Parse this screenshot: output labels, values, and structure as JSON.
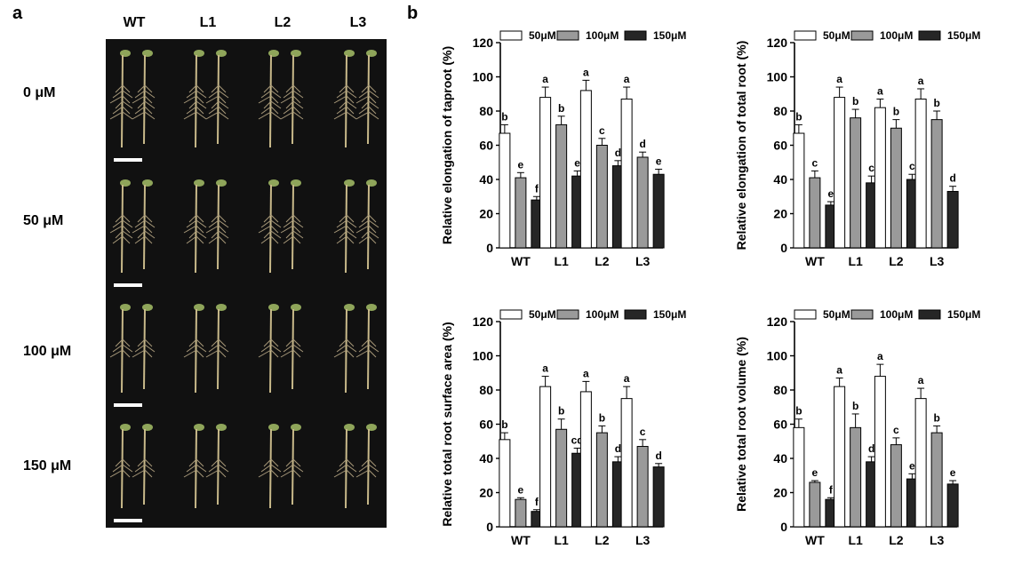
{
  "panel_labels": {
    "a": "a",
    "b": "b"
  },
  "photo": {
    "columns": [
      "WT",
      "L1",
      "L2",
      "L3"
    ],
    "rows": [
      "0 μM",
      "50 μM",
      "100 μM",
      "150 μM"
    ],
    "background": "#111111",
    "seedling_color": "#c8b98a",
    "leaf_color": "#8fa55a"
  },
  "chart_style": {
    "series_fill": [
      "#ffffff",
      "#9a9a9a",
      "#262626"
    ],
    "stroke": "#000000"
  },
  "chart_data": [
    {
      "type": "bar",
      "ylabel": "Relative elongation of taproot (%)",
      "categories": [
        "WT",
        "L1",
        "L2",
        "L3"
      ],
      "ylim": [
        0,
        120
      ],
      "yticks": [
        0,
        20,
        40,
        60,
        80,
        100,
        120
      ],
      "legend": "top",
      "series": [
        {
          "name": "50μM",
          "values": [
            67,
            88,
            92,
            87
          ],
          "errors": [
            5,
            6,
            6,
            7
          ],
          "letters": [
            "b",
            "a",
            "a",
            "a"
          ]
        },
        {
          "name": "100μM",
          "values": [
            41,
            72,
            60,
            53
          ],
          "errors": [
            3,
            5,
            4,
            3
          ],
          "letters": [
            "e",
            "b",
            "c",
            "d"
          ]
        },
        {
          "name": "150μM",
          "values": [
            28,
            42,
            48,
            43
          ],
          "errors": [
            2,
            3,
            3,
            3
          ],
          "letters": [
            "f",
            "e",
            "d",
            "e"
          ]
        }
      ]
    },
    {
      "type": "bar",
      "ylabel": "Relative elongation of total root (%)",
      "categories": [
        "WT",
        "L1",
        "L2",
        "L3"
      ],
      "ylim": [
        0,
        120
      ],
      "yticks": [
        0,
        20,
        40,
        60,
        80,
        100,
        120
      ],
      "legend": "top",
      "series": [
        {
          "name": "50μM",
          "values": [
            67,
            88,
            82,
            87
          ],
          "errors": [
            5,
            6,
            5,
            6
          ],
          "letters": [
            "b",
            "a",
            "a",
            "a"
          ]
        },
        {
          "name": "100μM",
          "values": [
            41,
            76,
            70,
            75
          ],
          "errors": [
            4,
            5,
            5,
            5
          ],
          "letters": [
            "c",
            "b",
            "b",
            "b"
          ]
        },
        {
          "name": "150μM",
          "values": [
            25,
            38,
            40,
            33
          ],
          "errors": [
            2,
            4,
            3,
            3
          ],
          "letters": [
            "e",
            "c",
            "c",
            "d"
          ]
        }
      ]
    },
    {
      "type": "bar",
      "ylabel": "Relative total root surface area (%)",
      "categories": [
        "WT",
        "L1",
        "L2",
        "L3"
      ],
      "ylim": [
        0,
        120
      ],
      "yticks": [
        0,
        20,
        40,
        60,
        80,
        100,
        120
      ],
      "legend": "top",
      "series": [
        {
          "name": "50μM",
          "values": [
            51,
            82,
            79,
            75
          ],
          "errors": [
            4,
            6,
            6,
            7
          ],
          "letters": [
            "b",
            "a",
            "a",
            "a"
          ]
        },
        {
          "name": "100μM",
          "values": [
            16,
            57,
            55,
            47
          ],
          "errors": [
            1,
            6,
            4,
            4
          ],
          "letters": [
            "e",
            "b",
            "b",
            "c"
          ]
        },
        {
          "name": "150μM",
          "values": [
            9,
            43,
            38,
            35
          ],
          "errors": [
            1,
            3,
            3,
            2
          ],
          "letters": [
            "f",
            "cd",
            "d",
            "d"
          ]
        }
      ]
    },
    {
      "type": "bar",
      "ylabel": "Relative total root volume (%)",
      "categories": [
        "WT",
        "L1",
        "L2",
        "L3"
      ],
      "ylim": [
        0,
        120
      ],
      "yticks": [
        0,
        20,
        40,
        60,
        80,
        100,
        120
      ],
      "legend": "top",
      "series": [
        {
          "name": "50μM",
          "values": [
            58,
            82,
            88,
            75
          ],
          "errors": [
            5,
            5,
            7,
            6
          ],
          "letters": [
            "b",
            "a",
            "a",
            "a"
          ]
        },
        {
          "name": "100μM",
          "values": [
            26,
            58,
            48,
            55
          ],
          "errors": [
            1,
            8,
            4,
            4
          ],
          "letters": [
            "e",
            "b",
            "c",
            "b"
          ]
        },
        {
          "name": "150μM",
          "values": [
            16,
            38,
            28,
            25
          ],
          "errors": [
            1,
            3,
            3,
            2
          ],
          "letters": [
            "f",
            "d",
            "e",
            "e"
          ]
        }
      ]
    }
  ]
}
